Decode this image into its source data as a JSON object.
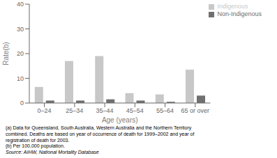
{
  "chart_data": {
    "type": "bar",
    "categories": [
      "0–24",
      "25–34",
      "35–44",
      "45–54",
      "55–64",
      "65 or over"
    ],
    "series": [
      {
        "name": "Indigenous",
        "color": "#c8c8c8",
        "values": [
          6.5,
          17.0,
          19.0,
          4.0,
          3.5,
          13.5
        ]
      },
      {
        "name": "Non-Indigenous",
        "color": "#707070",
        "values": [
          1.0,
          1.0,
          1.5,
          1.0,
          0.5,
          3.0
        ]
      }
    ],
    "xlabel": "Age (years)",
    "ylabel": "Rate(b)",
    "ylim": [
      0,
      40
    ],
    "yticks": [
      0,
      10,
      20,
      30,
      40
    ],
    "grid": false,
    "legend": "upper right",
    "annotations": [
      "(a) Data for Queensland, South Australia, Western Australia and the Northern Territory",
      "combined.  Deaths are based on year of occurrence of death for 1999–2002 and year of",
      "registration of death for 2003.",
      "(b) Per 100,000 population."
    ],
    "source": "Source: AIHW, National Mortality Database"
  }
}
